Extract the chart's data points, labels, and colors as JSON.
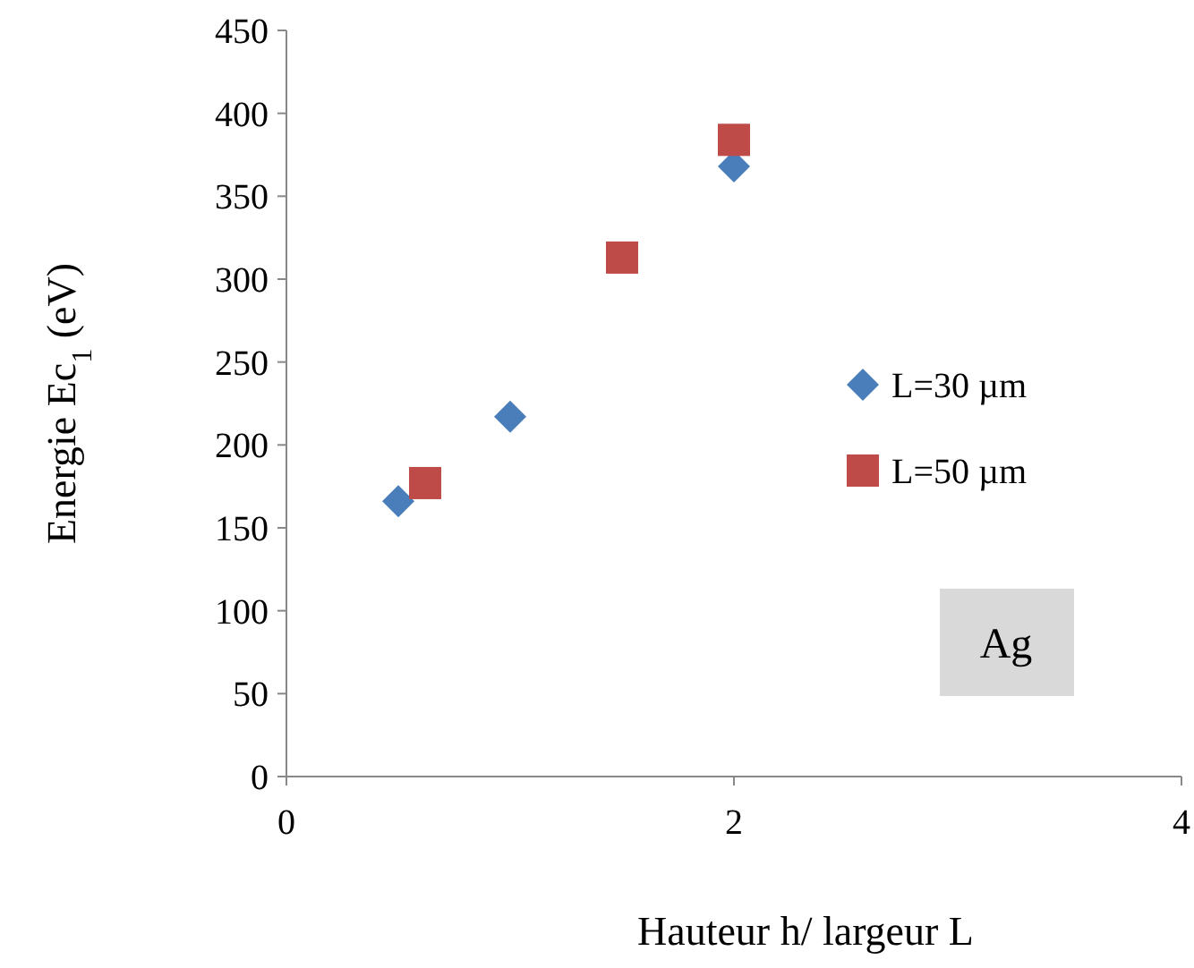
{
  "chart_data": {
    "type": "scatter",
    "xlabel": "Hauteur h/ largeur L",
    "ylabel": "Energie Ec$_{1}$ (eV)",
    "xlim": [
      0,
      4
    ],
    "xticks": [
      0,
      2,
      4
    ],
    "ylim": [
      0,
      450
    ],
    "yticks": [
      0,
      50,
      100,
      150,
      200,
      250,
      300,
      350,
      400,
      450
    ],
    "grid": false,
    "legend": "right",
    "series": [
      {
        "name": "L=30 µm",
        "color": "#4a7ebb",
        "marker": "diamond",
        "x": [
          0.5,
          1.0,
          2.0
        ],
        "values": [
          166,
          217,
          368
        ]
      },
      {
        "name": "L=50 µm",
        "color": "#be4b48",
        "marker": "square",
        "x": [
          0.62,
          1.5,
          2.0
        ],
        "values": [
          177,
          313,
          384
        ]
      }
    ],
    "annotations": [
      "Ag"
    ]
  }
}
